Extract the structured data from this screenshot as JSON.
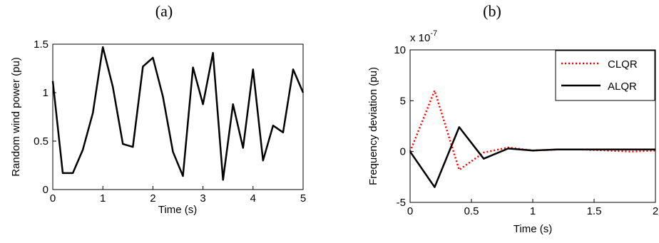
{
  "chart_data": [
    {
      "type": "line",
      "panel_label": "(a)",
      "xlabel": "Time (s)",
      "ylabel": "Random wind power (pu)",
      "xlim": [
        0,
        5
      ],
      "ylim": [
        0,
        1.5
      ],
      "xticks": [
        0,
        1,
        2,
        3,
        4,
        5
      ],
      "xtick_labels": [
        "0",
        "1",
        "2",
        "3",
        "4",
        "5"
      ],
      "yticks": [
        0,
        0.5,
        1,
        1.5
      ],
      "ytick_labels": [
        "0",
        "0.5",
        "1",
        "1.5"
      ],
      "grid": false,
      "series": [
        {
          "color": "#000000",
          "style": "solid",
          "x": [
            0,
            0.2,
            0.4,
            0.6,
            0.8,
            1.0,
            1.2,
            1.4,
            1.6,
            1.8,
            2.0,
            2.2,
            2.4,
            2.6,
            2.8,
            3.0,
            3.2,
            3.4,
            3.6,
            3.8,
            4.0,
            4.2,
            4.4,
            4.6,
            4.8,
            5.0
          ],
          "y": [
            1.12,
            0.17,
            0.17,
            0.41,
            0.79,
            1.47,
            1.06,
            0.47,
            0.44,
            1.27,
            1.36,
            0.96,
            0.39,
            0.14,
            1.26,
            0.88,
            1.41,
            0.1,
            0.88,
            0.43,
            1.24,
            0.3,
            0.66,
            0.59,
            1.24,
            1.0
          ]
        }
      ]
    },
    {
      "type": "line",
      "panel_label": "(b)",
      "xlabel": "Time (s)",
      "ylabel": "Frequency deviation (pu)",
      "y_multiplier": "x 10",
      "y_exponent": "-7",
      "xlim": [
        0,
        2
      ],
      "ylim": [
        -5,
        10
      ],
      "xticks": [
        0,
        0.5,
        1,
        1.5,
        2
      ],
      "xtick_labels": [
        "0",
        "0.5",
        "1",
        "1.5",
        "2"
      ],
      "yticks": [
        -5,
        0,
        5,
        10
      ],
      "ytick_labels": [
        "-5",
        "0",
        "5",
        "10"
      ],
      "grid": false,
      "legend_position": "top-right",
      "series": [
        {
          "name": "CLQR",
          "color": "#ff0000",
          "style": "dotted",
          "x": [
            0,
            0.2,
            0.4,
            0.6,
            0.8,
            1.0,
            1.2,
            1.4,
            1.6,
            1.8,
            2.0
          ],
          "y": [
            0,
            6.0,
            -1.8,
            -0.1,
            0.4,
            0.1,
            0.2,
            0.2,
            0.1,
            0.0,
            0.1
          ]
        },
        {
          "name": "ALQR",
          "color": "#000000",
          "style": "solid",
          "x": [
            0,
            0.2,
            0.4,
            0.6,
            0.8,
            1.0,
            1.2,
            1.4,
            1.6,
            1.8,
            2.0
          ],
          "y": [
            0,
            -3.5,
            2.4,
            -0.7,
            0.3,
            0.1,
            0.2,
            0.2,
            0.2,
            0.2,
            0.2
          ]
        }
      ]
    }
  ]
}
